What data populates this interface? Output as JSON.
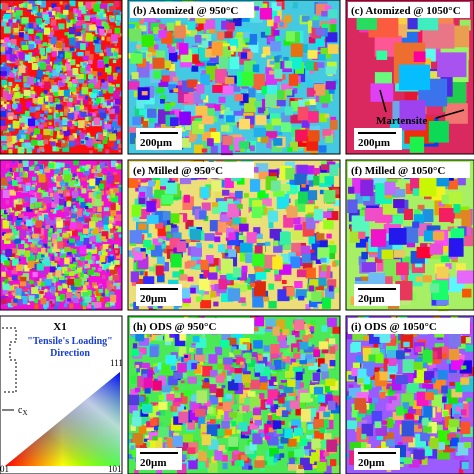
{
  "panels": [
    {
      "label": "(b) Atomized @ 950°C",
      "scale_bar": "200µm"
    },
    {
      "label": "(c) Atomized @ 1050°C",
      "scale_bar": "200µm",
      "annotation": "Martensite"
    },
    {
      "label": "(e) Milled @ 950°C",
      "scale_bar": "20µm"
    },
    {
      "label": "(f) Milled @ 1050°C",
      "scale_bar": "20µm"
    },
    {
      "label": "(h) ODS @ 950°C",
      "scale_bar": "20µm"
    },
    {
      "label": "(i) ODS @ 1050°C",
      "scale_bar": "20µm"
    }
  ],
  "legend": {
    "title": "X1",
    "subtitle": "\"Tensile's Loading\" Direction",
    "axis": "c",
    "axis_sub": "X",
    "poles": {
      "top": "111",
      "left": "01",
      "right": "101"
    }
  }
}
